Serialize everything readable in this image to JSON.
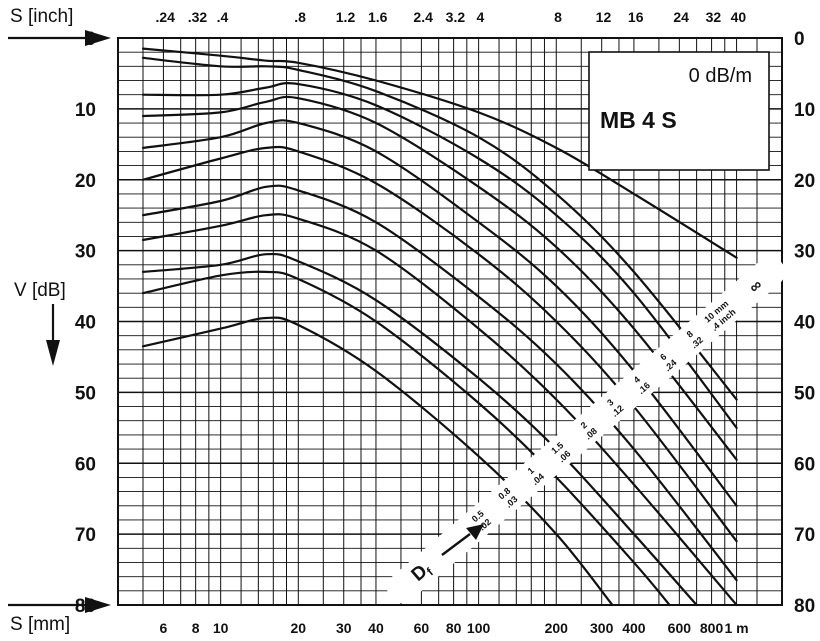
{
  "chart_data": {
    "type": "line",
    "title": "MB 4 S",
    "subtitle": "0 dB/m",
    "x_top_label": "S [inch]",
    "x_bottom_label": "S [mm]",
    "y_label": "V [dB]",
    "x_scale": "log",
    "xlim_mm": [
      4,
      1500
    ],
    "ylim": [
      0,
      80
    ],
    "y_ticks": [
      "0",
      "10",
      "20",
      "30",
      "40",
      "50",
      "60",
      "70",
      "80"
    ],
    "x_ticks_mm": [
      {
        "value": 6,
        "label": "6"
      },
      {
        "value": 8,
        "label": "8"
      },
      {
        "value": 10,
        "label": "10"
      },
      {
        "value": 20,
        "label": "20"
      },
      {
        "value": 30,
        "label": "30"
      },
      {
        "value": 40,
        "label": "40"
      },
      {
        "value": 60,
        "label": "60"
      },
      {
        "value": 80,
        "label": "80"
      },
      {
        "value": 100,
        "label": "100"
      },
      {
        "value": 200,
        "label": "200"
      },
      {
        "value": 300,
        "label": "300"
      },
      {
        "value": 400,
        "label": "400"
      },
      {
        "value": 600,
        "label": "600"
      },
      {
        "value": 800,
        "label": "800"
      },
      {
        "value": 1000,
        "label": "1 m"
      }
    ],
    "x_ticks_inch": [
      {
        "value": 0.24,
        "label": ".24"
      },
      {
        "value": 0.32,
        "label": ".32"
      },
      {
        "value": 0.4,
        "label": ".4"
      },
      {
        "value": 0.8,
        "label": ".8"
      },
      {
        "value": 1.2,
        "label": "1.2"
      },
      {
        "value": 1.6,
        "label": "1.6"
      },
      {
        "value": 2.4,
        "label": "2.4"
      },
      {
        "value": 3.2,
        "label": "3.2"
      },
      {
        "value": 4,
        "label": "4"
      },
      {
        "value": 8,
        "label": "8"
      },
      {
        "value": 12,
        "label": "12"
      },
      {
        "value": 16,
        "label": "16"
      },
      {
        "value": 24,
        "label": "24"
      },
      {
        "value": 32,
        "label": "32"
      },
      {
        "value": 40,
        "label": "40"
      }
    ],
    "grid": true,
    "reflector_label": "D",
    "reflector_label_sub": "f",
    "reflector_sizes_mm": [
      "0.5",
      "0.8",
      "1",
      "1.5",
      "2",
      "3",
      "4",
      "6",
      "8",
      "10 mm"
    ],
    "reflector_sizes_inch": [
      ".02",
      ".03",
      ".04",
      ".06",
      ".08",
      ".12",
      ".16",
      ".24",
      ".32",
      ".4 inch"
    ],
    "infinity_label": "∞",
    "series": [
      {
        "name": "∞",
        "points": [
          [
            5,
            1.5
          ],
          [
            10,
            2.5
          ],
          [
            15,
            3.2
          ],
          [
            20,
            3.5
          ],
          [
            40,
            6
          ],
          [
            100,
            10.5
          ],
          [
            200,
            15.5
          ],
          [
            400,
            22
          ],
          [
            1000,
            31
          ]
        ]
      },
      {
        "name": "10 mm",
        "points": [
          [
            5,
            2.8
          ],
          [
            10,
            4
          ],
          [
            15,
            4
          ],
          [
            20,
            4.5
          ],
          [
            40,
            7.5
          ],
          [
            100,
            14
          ],
          [
            200,
            22
          ],
          [
            400,
            33
          ],
          [
            1000,
            51
          ]
        ]
      },
      {
        "name": "8 mm",
        "points": [
          [
            5,
            8
          ],
          [
            10,
            8
          ],
          [
            15,
            7
          ],
          [
            20,
            6.5
          ],
          [
            40,
            9.5
          ],
          [
            100,
            17
          ],
          [
            200,
            25
          ],
          [
            400,
            36
          ],
          [
            1000,
            55
          ]
        ]
      },
      {
        "name": "6 mm",
        "points": [
          [
            5,
            11
          ],
          [
            10,
            10.5
          ],
          [
            15,
            9
          ],
          [
            20,
            8.5
          ],
          [
            40,
            12
          ],
          [
            100,
            21
          ],
          [
            200,
            29.5
          ],
          [
            400,
            41
          ],
          [
            1000,
            59.5
          ]
        ]
      },
      {
        "name": "4 mm",
        "points": [
          [
            5,
            15.5
          ],
          [
            10,
            14
          ],
          [
            15,
            12
          ],
          [
            20,
            12
          ],
          [
            40,
            16
          ],
          [
            100,
            26
          ],
          [
            200,
            35
          ],
          [
            400,
            47
          ],
          [
            1000,
            66
          ]
        ]
      },
      {
        "name": "3 mm",
        "points": [
          [
            5,
            20
          ],
          [
            10,
            17
          ],
          [
            15,
            15.5
          ],
          [
            20,
            16
          ],
          [
            40,
            20.5
          ],
          [
            100,
            30.5
          ],
          [
            200,
            40
          ],
          [
            400,
            52
          ],
          [
            1000,
            71
          ]
        ]
      },
      {
        "name": "2 mm",
        "points": [
          [
            5,
            25
          ],
          [
            10,
            23
          ],
          [
            15,
            21
          ],
          [
            20,
            21.5
          ],
          [
            40,
            26
          ],
          [
            100,
            36.5
          ],
          [
            200,
            46
          ],
          [
            400,
            58
          ],
          [
            1000,
            76.5
          ]
        ]
      },
      {
        "name": "1.5 mm",
        "points": [
          [
            5,
            28.5
          ],
          [
            10,
            26.5
          ],
          [
            15,
            25
          ],
          [
            20,
            25.5
          ],
          [
            40,
            30
          ],
          [
            100,
            41
          ],
          [
            200,
            51
          ],
          [
            400,
            63
          ],
          [
            1000,
            80
          ]
        ]
      },
      {
        "name": "1 mm",
        "points": [
          [
            5,
            33
          ],
          [
            10,
            32
          ],
          [
            15,
            30.5
          ],
          [
            20,
            31.5
          ],
          [
            40,
            37
          ],
          [
            100,
            48
          ],
          [
            200,
            58
          ],
          [
            400,
            70
          ],
          [
            700,
            80
          ]
        ]
      },
      {
        "name": "0.8 mm",
        "points": [
          [
            5,
            36
          ],
          [
            10,
            33.5
          ],
          [
            15,
            33
          ],
          [
            20,
            34
          ],
          [
            40,
            40
          ],
          [
            100,
            51.5
          ],
          [
            200,
            62
          ],
          [
            400,
            74
          ],
          [
            550,
            80
          ]
        ]
      },
      {
        "name": "0.5 mm",
        "points": [
          [
            5,
            43.5
          ],
          [
            10,
            41
          ],
          [
            15,
            39.5
          ],
          [
            20,
            40.5
          ],
          [
            40,
            47
          ],
          [
            100,
            59
          ],
          [
            200,
            70
          ],
          [
            330,
            80
          ]
        ]
      }
    ],
    "info_box": {
      "line1": "0 dB/m",
      "line2": "MB 4 S"
    }
  }
}
